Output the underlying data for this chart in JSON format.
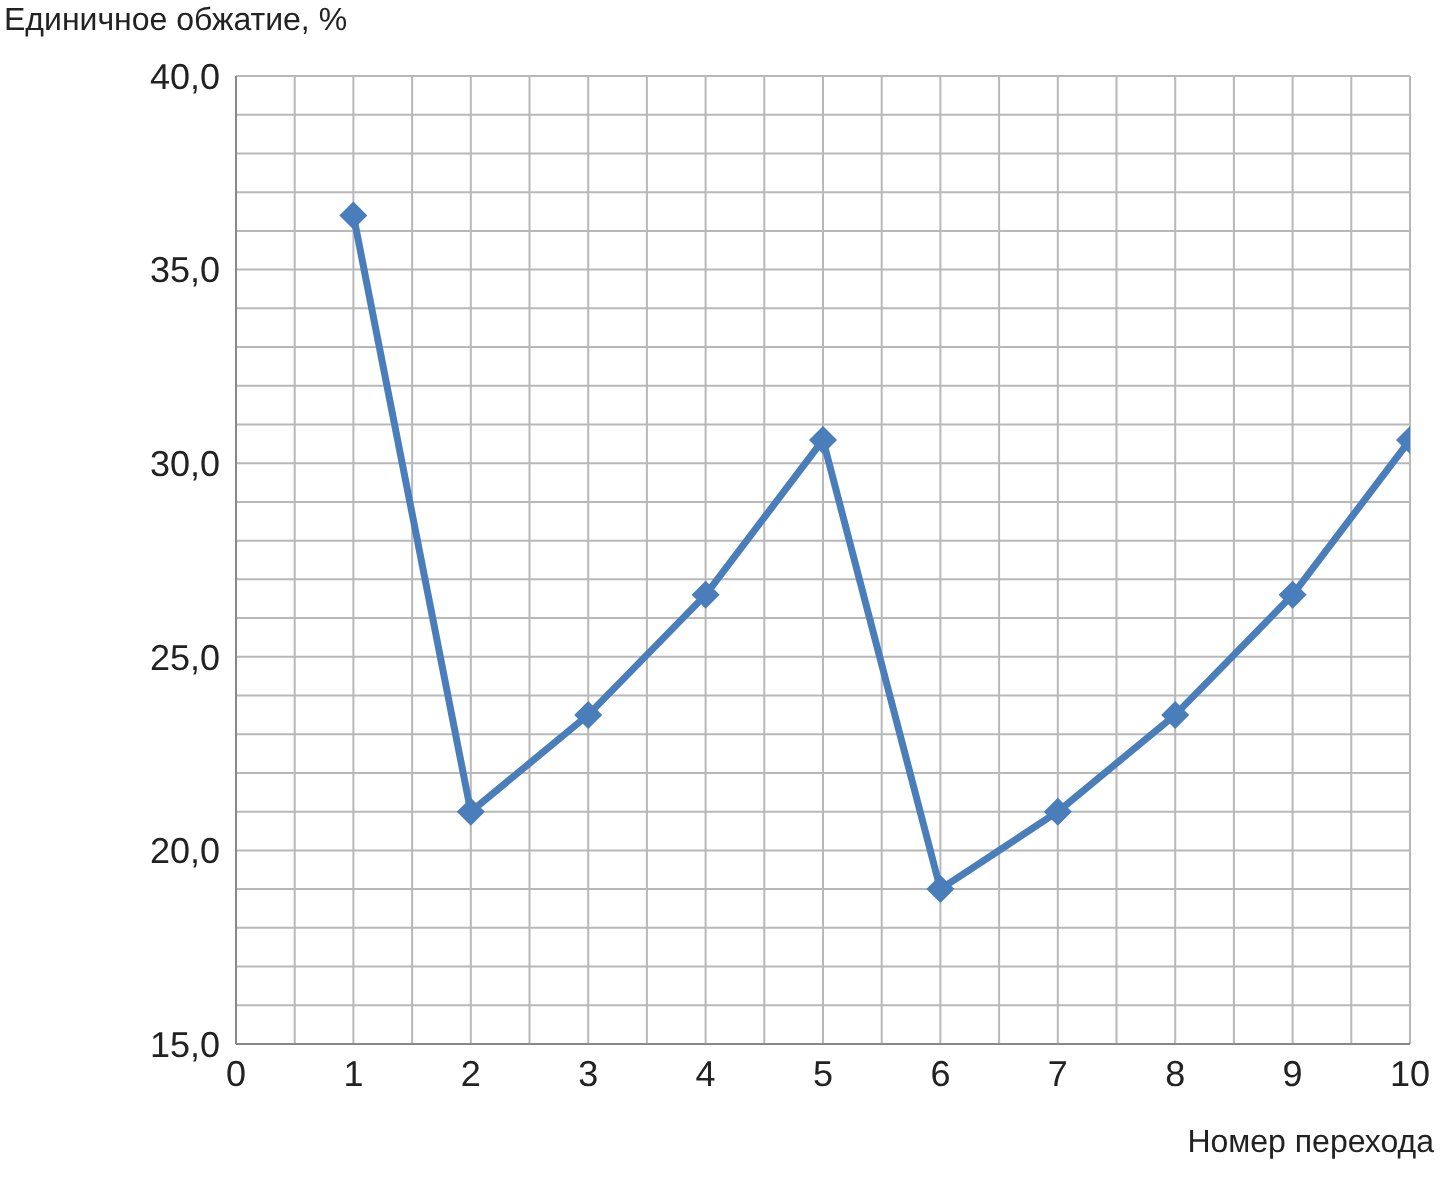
{
  "chart_data": {
    "type": "line",
    "ylabel": "Единичное обжатие, %",
    "xlabel": "Номер перехода",
    "x": [
      1,
      2,
      3,
      4,
      5,
      6,
      7,
      8,
      9,
      10
    ],
    "series": [
      {
        "color": "#4a7ebb",
        "values": [
          36.4,
          21.0,
          23.5,
          26.6,
          30.6,
          19.0,
          21.0,
          23.5,
          26.6,
          30.6
        ]
      }
    ],
    "xlim": [
      0,
      10
    ],
    "xticks": [
      0,
      {
        "value": 0.5,
        "label": null
      },
      1,
      {
        "value": 1.5,
        "label": null
      },
      2,
      {
        "value": 2.5,
        "label": null
      },
      3,
      {
        "value": 3.5,
        "label": null
      },
      4,
      {
        "value": 4.5,
        "label": null
      },
      5,
      {
        "value": 5.5,
        "label": null
      },
      6,
      {
        "value": 6.5,
        "label": null
      },
      7,
      {
        "value": 7.5,
        "label": null
      },
      8,
      {
        "value": 8.5,
        "label": null
      },
      9,
      {
        "value": 9.5,
        "label": null
      },
      10
    ],
    "ylim": [
      15,
      40
    ],
    "yticks": [
      {
        "value": 15,
        "label": "15,0"
      },
      {
        "value": 16,
        "label": null
      },
      {
        "value": 17,
        "label": null
      },
      {
        "value": 18,
        "label": null
      },
      {
        "value": 19,
        "label": null
      },
      {
        "value": 20,
        "label": "20,0"
      },
      {
        "value": 21,
        "label": null
      },
      {
        "value": 22,
        "label": null
      },
      {
        "value": 23,
        "label": null
      },
      {
        "value": 24,
        "label": null
      },
      {
        "value": 25,
        "label": "25,0"
      },
      {
        "value": 26,
        "label": null
      },
      {
        "value": 27,
        "label": null
      },
      {
        "value": 28,
        "label": null
      },
      {
        "value": 29,
        "label": null
      },
      {
        "value": 30,
        "label": "30,0"
      },
      {
        "value": 31,
        "label": null
      },
      {
        "value": 32,
        "label": null
      },
      {
        "value": 33,
        "label": null
      },
      {
        "value": 34,
        "label": null
      },
      {
        "value": 35,
        "label": "35,0"
      },
      {
        "value": 36,
        "label": null
      },
      {
        "value": 37,
        "label": null
      },
      {
        "value": 38,
        "label": null
      },
      {
        "value": 39,
        "label": null
      },
      {
        "value": 40,
        "label": "40,0"
      }
    ],
    "grid": true,
    "marker": "diamond",
    "line_style": "solid",
    "legend": false
  }
}
